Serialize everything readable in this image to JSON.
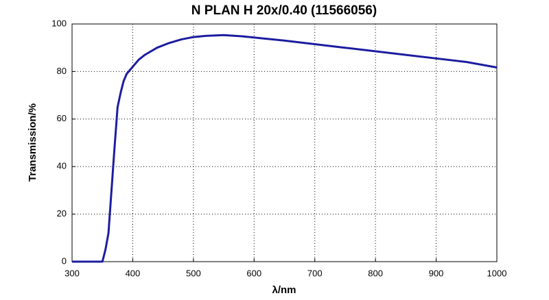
{
  "chart_data": {
    "type": "line",
    "title": "N PLAN H 20x/0.40 (11566056)",
    "x_label": "λ/nm",
    "y_label": "Transmission/%",
    "x": [
      300,
      350,
      355,
      360,
      365,
      370,
      375,
      380,
      385,
      390,
      400,
      410,
      420,
      440,
      460,
      480,
      500,
      520,
      550,
      580,
      600,
      650,
      700,
      750,
      800,
      850,
      900,
      950,
      1000
    ],
    "series": [
      {
        "name": "Transmission",
        "color": "#1c1ca0",
        "values": [
          0,
          0,
          5,
          12,
          30,
          48,
          65,
          71,
          76,
          79,
          82,
          85,
          87,
          90,
          92,
          93.5,
          94.5,
          95,
          95.3,
          94.8,
          94.3,
          93,
          91.5,
          90,
          88.5,
          87,
          85.5,
          84,
          81.7
        ]
      }
    ],
    "xlim": [
      300,
      1000
    ],
    "ylim": [
      0,
      100
    ],
    "xticks": [
      300,
      400,
      500,
      600,
      700,
      800,
      900,
      1000
    ],
    "yticks": [
      0,
      20,
      40,
      60,
      80,
      100
    ],
    "grid": true
  }
}
